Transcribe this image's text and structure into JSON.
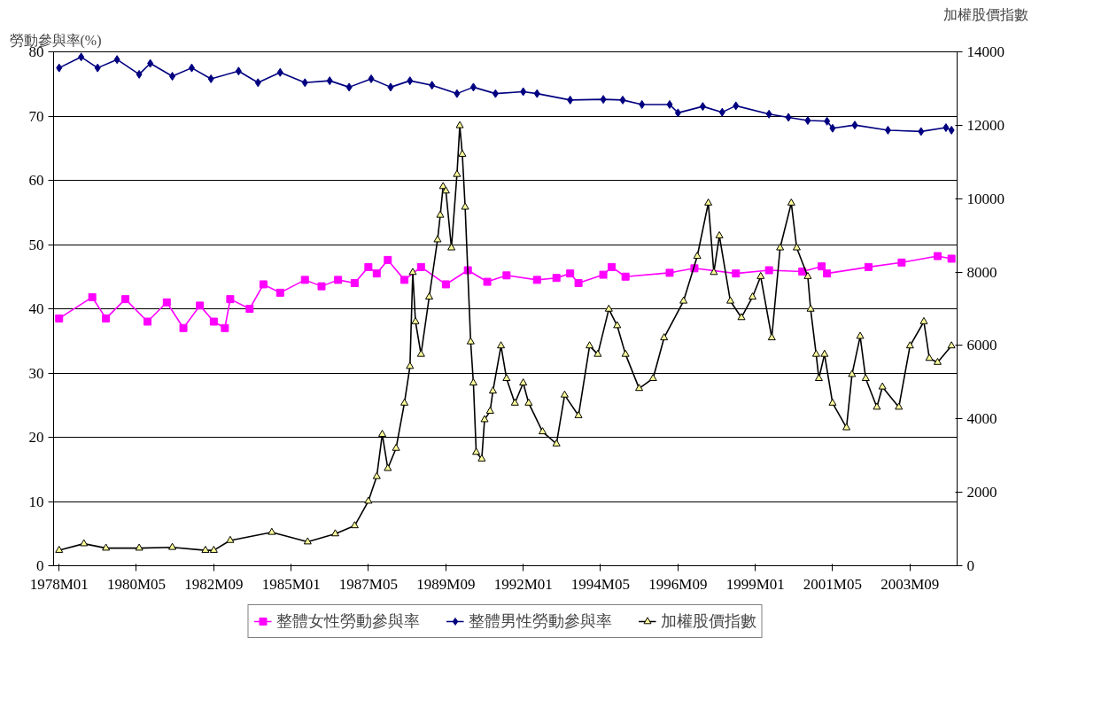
{
  "chart_data": {
    "type": "line",
    "ylabel": "勞動參與率(%)",
    "y2label": "加權股價指數",
    "xlim": [
      "1977-11",
      "2005-02"
    ],
    "xticks": [
      {
        "value": "1978-01",
        "label": "1978M01"
      },
      {
        "value": "1980-05",
        "label": "1980M05"
      },
      {
        "value": "1982-09",
        "label": "1982M09"
      },
      {
        "value": "1985-01",
        "label": "1985M01"
      },
      {
        "value": "1987-05",
        "label": "1987M05"
      },
      {
        "value": "1989-09",
        "label": "1989M09"
      },
      {
        "value": "1992-01",
        "label": "1992M01"
      },
      {
        "value": "1994-05",
        "label": "1994M05"
      },
      {
        "value": "1996-09",
        "label": "1996M09"
      },
      {
        "value": "1999-01",
        "label": "1999M01"
      },
      {
        "value": "2001-05",
        "label": "2001M05"
      },
      {
        "value": "2003-09",
        "label": "2003M09"
      }
    ],
    "ylim": [
      0,
      80
    ],
    "yticks": [
      0,
      10,
      20,
      30,
      40,
      50,
      60,
      70,
      80
    ],
    "y2lim": [
      0,
      14000
    ],
    "y2ticks": [
      0,
      2000,
      4000,
      6000,
      8000,
      10000,
      12000,
      14000
    ],
    "grid": "y",
    "legend": "bottom",
    "series": [
      {
        "name": "整體女性勞動參與率",
        "color": "#ff00ff",
        "marker": "square",
        "x": [
          "1978-01",
          "1979-01",
          "1979-06",
          "1980-01",
          "1980-09",
          "1981-04",
          "1981-10",
          "1982-04",
          "1982-09",
          "1983-01",
          "1983-03",
          "1983-10",
          "1984-03",
          "1984-09",
          "1985-06",
          "1985-12",
          "1986-06",
          "1986-12",
          "1987-05",
          "1987-08",
          "1987-12",
          "1988-06",
          "1988-12",
          "1989-09",
          "1990-05",
          "1990-12",
          "1991-07",
          "1992-06",
          "1993-01",
          "1993-06",
          "1993-09",
          "1994-06",
          "1994-09",
          "1995-02",
          "1996-06",
          "1997-03",
          "1998-06",
          "1999-06",
          "2000-06",
          "2001-01",
          "2001-03",
          "2002-06",
          "2003-06",
          "2004-07",
          "2004-12"
        ],
        "values": [
          38.5,
          41.8,
          38.5,
          41.5,
          38.0,
          41.0,
          37.0,
          40.5,
          38.0,
          37.0,
          41.5,
          40,
          43.8,
          42.5,
          44.5,
          43.5,
          44.5,
          44,
          46.5,
          45.5,
          47.6,
          44.5,
          46.5,
          43.8,
          46.0,
          44.2,
          45.2,
          44.5,
          44.8,
          45.5,
          44,
          45.3,
          46.5,
          45,
          45.6,
          46.3,
          45.5,
          46,
          45.8,
          46.6,
          45.5,
          46.5,
          47.2,
          48.2,
          47.8
        ]
      },
      {
        "name": "整體男性勞動參與率",
        "color": "#000080",
        "marker": "diamond",
        "x": [
          "1978-01",
          "1978-09",
          "1979-03",
          "1979-10",
          "1980-06",
          "1980-10",
          "1981-06",
          "1982-01",
          "1982-08",
          "1983-06",
          "1984-01",
          "1984-09",
          "1985-06",
          "1986-03",
          "1986-10",
          "1987-06",
          "1988-01",
          "1988-08",
          "1989-04",
          "1990-01",
          "1990-07",
          "1991-03",
          "1992-01",
          "1992-06",
          "1993-06",
          "1994-06",
          "1995-01",
          "1995-08",
          "1996-06",
          "1996-09",
          "1997-06",
          "1998-01",
          "1998-06",
          "1999-06",
          "2000-01",
          "2000-08",
          "2001-03",
          "2001-05",
          "2002-01",
          "2003-01",
          "2004-01",
          "2004-10",
          "2004-12"
        ],
        "values": [
          77.5,
          79.2,
          77.5,
          78.8,
          76.5,
          78.2,
          76.2,
          77.5,
          75.8,
          77,
          75.2,
          76.8,
          75.2,
          75.5,
          74.5,
          75.8,
          74.5,
          75.5,
          74.8,
          73.5,
          74.5,
          73.5,
          73.8,
          73.5,
          72.5,
          72.6,
          72.5,
          71.8,
          71.8,
          70.5,
          71.5,
          70.6,
          71.6,
          70.3,
          69.8,
          69.3,
          69.2,
          68.1,
          68.6,
          67.8,
          67.6,
          68.2,
          67.8
        ]
      },
      {
        "name": "加權股價指數",
        "color": "#000000",
        "marker": "triangle",
        "axis": "y2",
        "x": [
          "1978-01",
          "1978-10",
          "1979-06",
          "1980-06",
          "1981-06",
          "1982-06",
          "1982-09",
          "1983-03",
          "1984-06",
          "1985-07",
          "1986-05",
          "1986-12",
          "1987-05",
          "1987-08",
          "1987-10",
          "1987-12",
          "1988-03",
          "1988-06",
          "1988-08",
          "1988-09",
          "1988-10",
          "1988-12",
          "1989-03",
          "1989-06",
          "1989-07",
          "1989-08",
          "1989-09",
          "1989-11",
          "1990-01",
          "1990-02",
          "1990-03",
          "1990-04",
          "1990-06",
          "1990-07",
          "1990-08",
          "1990-10",
          "1990-11",
          "1991-01",
          "1991-02",
          "1991-05",
          "1991-07",
          "1991-10",
          "1992-01",
          "1992-03",
          "1992-08",
          "1993-01",
          "1993-04",
          "1993-09",
          "1994-01",
          "1994-04",
          "1994-08",
          "1994-11",
          "1995-02",
          "1995-07",
          "1995-12",
          "1996-04",
          "1996-11",
          "1997-04",
          "1997-08",
          "1997-10",
          "1997-12",
          "1998-04",
          "1998-08",
          "1998-12",
          "1999-03",
          "1999-07",
          "1999-10",
          "2000-02",
          "2000-04",
          "2000-08",
          "2000-09",
          "2000-11",
          "2000-12",
          "2001-02",
          "2001-05",
          "2001-10",
          "2001-12",
          "2002-03",
          "2002-05",
          "2002-09",
          "2002-11",
          "2003-05",
          "2003-09",
          "2004-02",
          "2004-04",
          "2004-07",
          "2004-12"
        ],
        "values": [
          420,
          600,
          480,
          480,
          500,
          420,
          420,
          690,
          910,
          650,
          870,
          1090,
          1760,
          2430,
          3580,
          2650,
          3200,
          4430,
          5430,
          7990,
          6650,
          5760,
          7320,
          8880,
          9550,
          10330,
          10210,
          8660,
          10660,
          11990,
          11210,
          9770,
          6100,
          4980,
          3090,
          2910,
          3980,
          4210,
          4760,
          5990,
          5100,
          4430,
          4980,
          4430,
          3650,
          3320,
          4650,
          4090,
          5990,
          5760,
          6990,
          6540,
          5760,
          4830,
          5100,
          6210,
          7210,
          8430,
          9880,
          7990,
          8990,
          7210,
          6760,
          7320,
          7880,
          6210,
          8660,
          9880,
          8660,
          7880,
          6990,
          5760,
          5100,
          5760,
          4430,
          3760,
          5210,
          6250,
          5100,
          4320,
          4870,
          4320,
          5990,
          6650,
          5650,
          5540,
          5990
        ]
      }
    ]
  }
}
